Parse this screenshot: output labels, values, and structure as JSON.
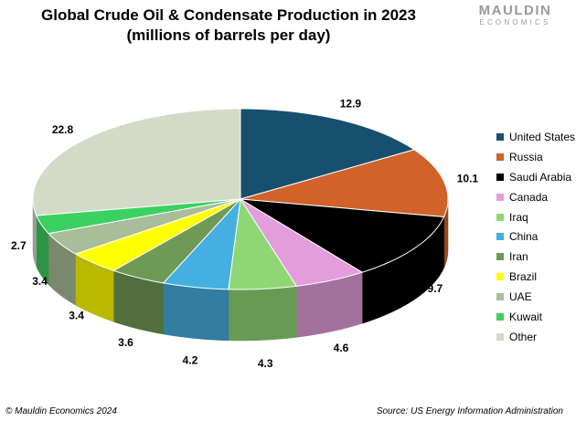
{
  "header": {
    "title_line1": "Global Crude Oil & Condensate Production in 2023",
    "title_line2": "(millions of barrels per day)"
  },
  "brand": {
    "name": "MAULDIN",
    "sub": "ECONOMICS"
  },
  "footer": {
    "copyright": "© Mauldin Economics 2024",
    "source": "Source: US Energy Information Administration"
  },
  "chart_data": {
    "type": "pie",
    "style": "3d",
    "legend_position": "right",
    "categories": [
      "United States",
      "Russia",
      "Saudi Arabia",
      "Canada",
      "Iraq",
      "China",
      "Iran",
      "Brazil",
      "UAE",
      "Kuwait",
      "Other"
    ],
    "values": [
      12.9,
      10.1,
      9.7,
      4.6,
      4.3,
      4.2,
      3.6,
      3.4,
      3.4,
      2.7,
      22.8
    ],
    "data_labels": [
      "12.9",
      "10.1",
      "9.7",
      "4.6",
      "4.3",
      "4.2",
      "3.6",
      "3.4",
      "3.4",
      "2.7",
      "22.8"
    ],
    "colors": [
      "#17506e",
      "#d0622a",
      "#000000",
      "#e39ddc",
      "#8fd775",
      "#44afe0",
      "#6f9a55",
      "#ffff00",
      "#a9bd98",
      "#3bd160",
      "#d3dbc8"
    ]
  }
}
